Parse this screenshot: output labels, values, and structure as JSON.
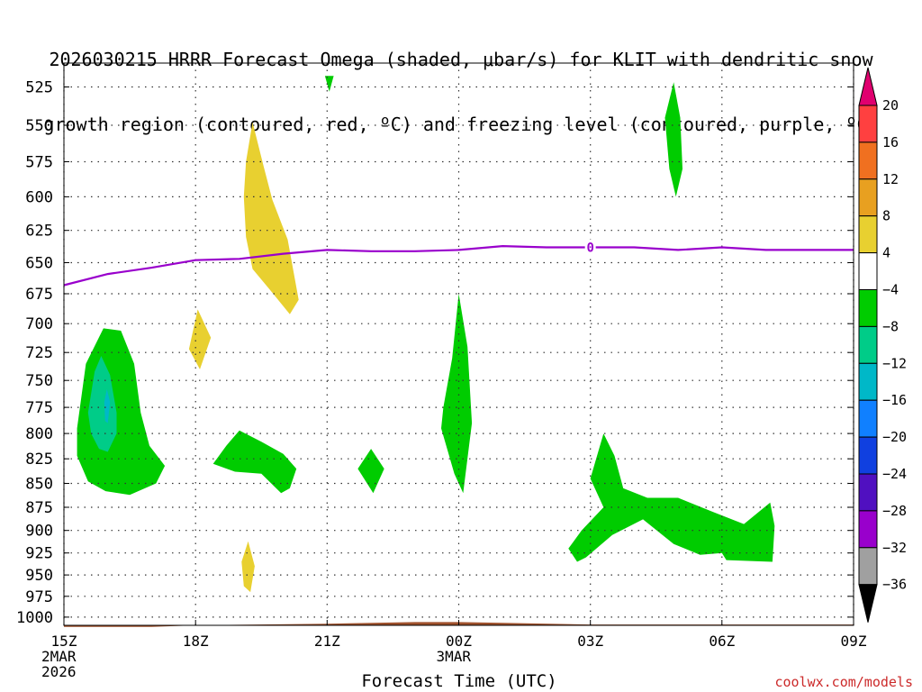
{
  "chart_data": {
    "type": "heatmap",
    "title": [
      "2026030215 HRRR Forecast Omega (shaded, μbar/s) for KLIT with dendritic snow",
      "growth region (contoured, red, ºC) and freezing level (contoured, purple, ºC)"
    ],
    "xlabel": "Forecast Time (UTC)",
    "credit": "coolwx.com/models",
    "x_ticks": [
      {
        "hour": 15,
        "label": [
          "15Z",
          "2MAR",
          "2026"
        ]
      },
      {
        "hour": 18,
        "label": [
          "18Z"
        ]
      },
      {
        "hour": 21,
        "label": [
          "21Z"
        ]
      },
      {
        "hour": 24,
        "label": [
          "00Z",
          "3MAR"
        ]
      },
      {
        "hour": 27,
        "label": [
          "03Z"
        ]
      },
      {
        "hour": 30,
        "label": [
          "06Z"
        ]
      },
      {
        "hour": 33,
        "label": [
          "09Z"
        ]
      }
    ],
    "xlim": [
      15,
      33
    ],
    "y_axis": "pressure (mb), log scale, inverted",
    "ylim": [
      1010,
      510
    ],
    "y_ticks": [
      525,
      550,
      575,
      600,
      625,
      650,
      675,
      700,
      725,
      750,
      775,
      800,
      825,
      850,
      875,
      900,
      925,
      950,
      975,
      1000
    ],
    "grid": true,
    "freezing_level": {
      "label": "0",
      "color": "#9900cc",
      "points": [
        [
          15,
          668
        ],
        [
          16,
          659
        ],
        [
          17,
          654
        ],
        [
          18,
          648
        ],
        [
          19,
          647
        ],
        [
          20,
          643
        ],
        [
          21,
          640
        ],
        [
          22,
          641
        ],
        [
          23,
          641
        ],
        [
          24,
          640
        ],
        [
          25,
          637
        ],
        [
          26,
          638
        ],
        [
          27,
          638
        ],
        [
          28,
          638
        ],
        [
          29,
          640
        ],
        [
          30,
          638
        ],
        [
          31,
          640
        ],
        [
          32,
          640
        ],
        [
          33,
          640
        ]
      ]
    },
    "omega_regions": [
      {
        "class": "-4 to -8",
        "color": "#00cc00",
        "points": [
          [
            15.3,
            795
          ],
          [
            15.5,
            735
          ],
          [
            15.9,
            704
          ],
          [
            16.3,
            706
          ],
          [
            16.6,
            735
          ],
          [
            16.75,
            780
          ],
          [
            16.95,
            812
          ],
          [
            17.3,
            832
          ],
          [
            17.1,
            850
          ],
          [
            16.5,
            862
          ],
          [
            15.95,
            858
          ],
          [
            15.55,
            848
          ],
          [
            15.3,
            822
          ]
        ]
      },
      {
        "class": "-8 to -12",
        "color": "#00cc88",
        "points": [
          [
            15.55,
            780
          ],
          [
            15.7,
            742
          ],
          [
            15.85,
            728
          ],
          [
            16.05,
            745
          ],
          [
            16.2,
            780
          ],
          [
            16.2,
            800
          ],
          [
            16.0,
            818
          ],
          [
            15.8,
            815
          ],
          [
            15.62,
            800
          ]
        ]
      },
      {
        "class": "-12 to -16",
        "color": "#00b8c8",
        "points": [
          [
            15.92,
            770
          ],
          [
            15.98,
            758
          ],
          [
            16.05,
            770
          ],
          [
            16.0,
            790
          ],
          [
            15.94,
            788
          ]
        ]
      },
      {
        "class": "4 to 8",
        "color": "#e8d030",
        "points": [
          [
            19.3,
            548
          ],
          [
            19.55,
            578
          ],
          [
            19.75,
            602
          ],
          [
            20.1,
            632
          ],
          [
            20.35,
            680
          ],
          [
            20.15,
            692
          ],
          [
            19.7,
            672
          ],
          [
            19.3,
            655
          ],
          [
            19.15,
            630
          ],
          [
            19.1,
            600
          ],
          [
            19.15,
            575
          ]
        ]
      },
      {
        "class": "4 to 8",
        "color": "#e8d030",
        "points": [
          [
            17.85,
            722
          ],
          [
            18.05,
            688
          ],
          [
            18.35,
            712
          ],
          [
            18.1,
            740
          ]
        ]
      },
      {
        "class": "4 to 8",
        "color": "#e8d030",
        "points": [
          [
            19.05,
            935
          ],
          [
            19.2,
            912
          ],
          [
            19.35,
            940
          ],
          [
            19.25,
            970
          ],
          [
            19.1,
            963
          ]
        ]
      },
      {
        "class": "-4 to -8",
        "color": "#00cc00",
        "points": [
          [
            18.4,
            830
          ],
          [
            18.7,
            812
          ],
          [
            19.0,
            797
          ],
          [
            19.5,
            808
          ],
          [
            20.0,
            820
          ],
          [
            20.3,
            835
          ],
          [
            20.15,
            855
          ],
          [
            19.95,
            860
          ],
          [
            19.5,
            840
          ],
          [
            18.9,
            838
          ]
        ]
      },
      {
        "class": "-4 to -8",
        "color": "#00cc00",
        "points": [
          [
            21.7,
            835
          ],
          [
            22.0,
            815
          ],
          [
            22.3,
            835
          ],
          [
            22.05,
            860
          ]
        ]
      },
      {
        "class": "-4 to -8",
        "color": "#00cc00",
        "points": [
          [
            20.95,
            518
          ],
          [
            21.15,
            518
          ],
          [
            21.05,
            528
          ]
        ]
      },
      {
        "class": "-4 to -8",
        "color": "#00cc00",
        "points": [
          [
            23.65,
            775
          ],
          [
            23.85,
            730
          ],
          [
            24.0,
            675
          ],
          [
            24.2,
            720
          ],
          [
            24.3,
            790
          ],
          [
            24.1,
            860
          ],
          [
            23.9,
            840
          ],
          [
            23.6,
            795
          ]
        ]
      },
      {
        "class": "-4 to -8",
        "color": "#00cc00",
        "points": [
          [
            28.7,
            545
          ],
          [
            28.9,
            522
          ],
          [
            29.05,
            545
          ],
          [
            29.1,
            580
          ],
          [
            28.95,
            600
          ],
          [
            28.8,
            580
          ]
        ]
      },
      {
        "class": "-4 to -8",
        "color": "#00cc00",
        "points": [
          [
            26.5,
            920
          ],
          [
            26.8,
            900
          ],
          [
            27.3,
            875
          ],
          [
            27.0,
            845
          ],
          [
            27.3,
            800
          ],
          [
            27.55,
            822
          ],
          [
            27.75,
            855
          ],
          [
            28.3,
            865
          ],
          [
            29.0,
            865
          ],
          [
            29.8,
            880
          ],
          [
            30.5,
            893
          ],
          [
            31.1,
            870
          ],
          [
            31.2,
            895
          ],
          [
            31.15,
            935
          ],
          [
            30.1,
            933
          ],
          [
            30.0,
            925
          ],
          [
            29.5,
            927
          ],
          [
            28.9,
            915
          ],
          [
            28.2,
            888
          ],
          [
            27.5,
            905
          ],
          [
            26.9,
            930
          ],
          [
            26.7,
            935
          ]
        ]
      }
    ],
    "ground": {
      "color": "#a0522d",
      "points": [
        [
          15,
          1012
        ],
        [
          17,
          1012
        ],
        [
          18,
          1010
        ],
        [
          21,
          1008
        ],
        [
          23,
          1006
        ],
        [
          24,
          1006
        ],
        [
          25,
          1007
        ],
        [
          27,
          1009
        ],
        [
          33,
          1009
        ]
      ]
    },
    "colorbar": {
      "labels": [
        "20",
        "16",
        "12",
        "8",
        "4",
        "−4",
        "−8",
        "−12",
        "−16",
        "−20",
        "−24",
        "−28",
        "−32",
        "−36"
      ],
      "colors": [
        "#ff4040",
        "#f07020",
        "#e8a020",
        "#e8d030",
        "#ffffff",
        "#00cc00",
        "#00cc88",
        "#00b8c8",
        "#1080ff",
        "#1040e0",
        "#5010c0",
        "#9900cc",
        "#a0a0a0"
      ],
      "top_arrow_color": "#e0006f",
      "bottom_arrow_color": "#000000"
    }
  }
}
